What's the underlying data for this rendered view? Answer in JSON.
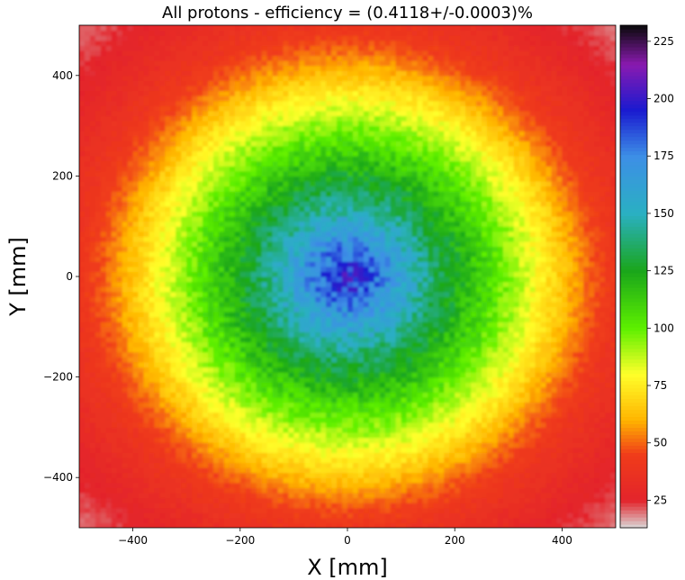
{
  "chart_data": {
    "type": "heatmap",
    "title": "All protons - efficiency = (0.4118+/-0.0003)%",
    "xlabel": "X [mm]",
    "ylabel": "Y [mm]",
    "xlim": [
      -500,
      500
    ],
    "ylim": [
      -500,
      500
    ],
    "x_ticks": [
      -400,
      -200,
      0,
      200,
      400
    ],
    "x_tick_labels": [
      "−400",
      "−200",
      "0",
      "200",
      "400"
    ],
    "y_ticks": [
      -400,
      -200,
      0,
      200,
      400
    ],
    "y_tick_labels": [
      "−400",
      "−200",
      "0",
      "200",
      "400"
    ],
    "colorbar": {
      "range": [
        13,
        232
      ],
      "ticks": [
        25,
        50,
        75,
        100,
        125,
        150,
        175,
        200,
        225
      ],
      "tick_labels": [
        "25",
        "50",
        "75",
        "100",
        "125",
        "150",
        "175",
        "200",
        "225"
      ],
      "colormap_stops": [
        {
          "value": 13,
          "color": "#d9d9d9"
        },
        {
          "value": 25,
          "color": "#e3242b"
        },
        {
          "value": 45,
          "color": "#f03c1a"
        },
        {
          "value": 60,
          "color": "#ffb400"
        },
        {
          "value": 80,
          "color": "#ffff2a"
        },
        {
          "value": 100,
          "color": "#5ef000"
        },
        {
          "value": 125,
          "color": "#1aa61a"
        },
        {
          "value": 150,
          "color": "#2ab0c2"
        },
        {
          "value": 175,
          "color": "#3d8fe6"
        },
        {
          "value": 195,
          "color": "#1a1ad0"
        },
        {
          "value": 215,
          "color": "#8a1ab0"
        },
        {
          "value": 232,
          "color": "#0a0a0a"
        }
      ]
    },
    "profile": {
      "description": "approximately radial distribution",
      "radius_mm": [
        0,
        50,
        100,
        150,
        200,
        250,
        300,
        350,
        400,
        450,
        500,
        600,
        700
      ],
      "value": [
        200,
        180,
        160,
        140,
        125,
        110,
        95,
        80,
        65,
        50,
        40,
        28,
        20
      ]
    }
  }
}
